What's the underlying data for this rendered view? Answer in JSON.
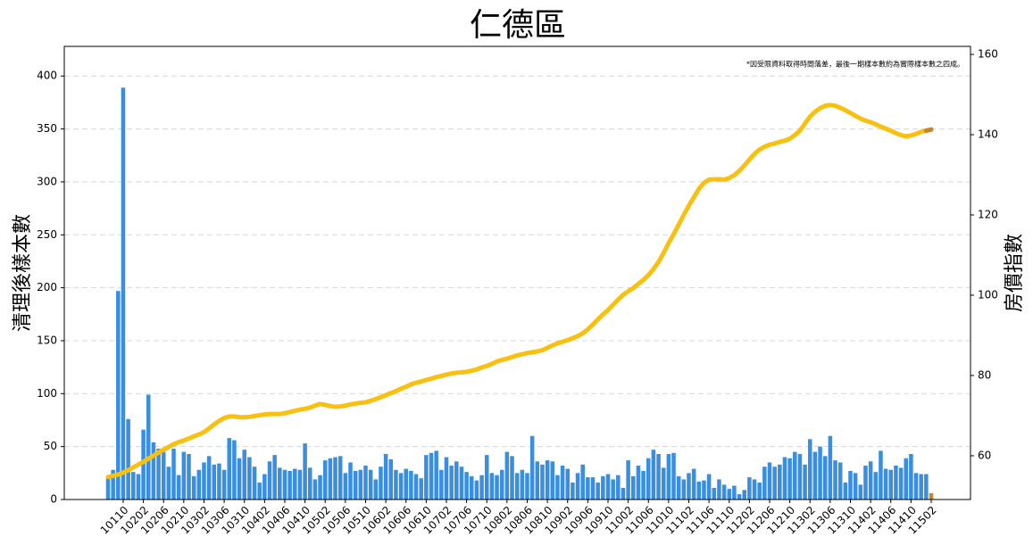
{
  "chart_data": {
    "type": "bar-line",
    "title": "仁德區",
    "ylabel": "清理後樣本數",
    "y2label": "房價指數",
    "annotation": "*因受限資料取得時間落差，最後一期樣本數約為實際樣本數之四成。",
    "categories": [
      null,
      null,
      null,
      "10110",
      null,
      null,
      null,
      "10202",
      null,
      null,
      null,
      "10206",
      null,
      null,
      null,
      "10210",
      null,
      null,
      null,
      "10302",
      null,
      null,
      null,
      "10306",
      null,
      null,
      null,
      "10310",
      null,
      null,
      null,
      "10402",
      null,
      null,
      null,
      "10406",
      null,
      null,
      null,
      "10410",
      null,
      null,
      null,
      "10502",
      null,
      null,
      null,
      "10506",
      null,
      null,
      null,
      "10510",
      null,
      null,
      null,
      "10602",
      null,
      null,
      null,
      "10606",
      null,
      null,
      null,
      "10610",
      null,
      null,
      null,
      "10702",
      null,
      null,
      null,
      "10706",
      null,
      null,
      null,
      "10710",
      null,
      null,
      null,
      "10802",
      null,
      null,
      null,
      "10806",
      null,
      null,
      null,
      "10810",
      null,
      null,
      null,
      "10902",
      null,
      null,
      null,
      "10906",
      null,
      null,
      null,
      "10910",
      null,
      null,
      null,
      "11002",
      null,
      null,
      null,
      "11006",
      null,
      null,
      null,
      "11010",
      null,
      null,
      null,
      "11102",
      null,
      null,
      null,
      "11106",
      null,
      null,
      null,
      "11110",
      null,
      null,
      null,
      "11202",
      null,
      null,
      null,
      "11206",
      null,
      null,
      null,
      "11210",
      null,
      null,
      null,
      "11302",
      null,
      null,
      null,
      "11306",
      null,
      null,
      null,
      "11310",
      null,
      null,
      null,
      "11402",
      null,
      null,
      null,
      "11406",
      null,
      null,
      null,
      "11410",
      null,
      null,
      null,
      "11502"
    ],
    "series": [
      {
        "type": "bar",
        "axis": "y",
        "color": "#3a8ee0",
        "values": [
          21,
          28,
          197,
          389,
          76,
          26,
          24,
          66,
          99,
          54,
          48,
          45,
          31,
          48,
          23,
          45,
          43,
          22,
          28,
          35,
          41,
          33,
          34,
          28,
          58,
          56,
          39,
          47,
          40,
          31,
          16,
          24,
          36,
          42,
          30,
          28,
          27,
          29,
          28,
          53,
          30,
          19,
          23,
          37,
          39,
          40,
          41,
          25,
          35,
          27,
          28,
          32,
          28,
          19,
          31,
          43,
          38,
          28,
          25,
          29,
          27,
          24,
          20,
          42,
          44,
          46,
          28,
          40,
          32,
          36,
          31,
          26,
          22,
          18,
          23,
          42,
          25,
          23,
          28,
          45,
          41,
          25,
          28,
          25,
          60,
          36,
          33,
          37,
          36,
          23,
          32,
          29,
          16,
          25,
          33,
          21,
          21,
          16,
          22,
          24,
          19,
          23,
          11,
          37,
          22,
          32,
          27,
          39,
          47,
          43,
          30,
          43,
          44,
          22,
          19,
          25,
          29,
          17,
          18,
          24,
          11,
          19,
          14,
          10,
          13,
          5,
          9,
          21,
          19,
          16,
          31,
          35,
          31,
          33,
          40,
          39,
          45,
          43,
          33,
          57,
          45,
          50,
          41,
          60,
          37,
          35,
          16,
          27,
          25,
          14,
          32,
          36,
          26,
          46,
          29,
          28,
          32,
          30,
          39,
          43,
          25,
          24,
          24,
          6
        ]
      },
      {
        "type": "line",
        "axis": "y2",
        "color": "#f8c010",
        "values": [
          54.7,
          55.0,
          55.3,
          55.8,
          56.4,
          57.1,
          57.8,
          58.5,
          59.3,
          60.0,
          60.8,
          61.5,
          62.2,
          62.9,
          63.4,
          63.8,
          64.3,
          64.8,
          65.3,
          65.9,
          66.8,
          67.8,
          68.7,
          69.4,
          69.8,
          69.8,
          69.6,
          69.6,
          69.7,
          69.9,
          70.1,
          70.3,
          70.4,
          70.4,
          70.4,
          70.6,
          70.9,
          71.2,
          71.5,
          71.7,
          72.0,
          72.5,
          72.9,
          72.7,
          72.4,
          72.2,
          72.3,
          72.5,
          72.8,
          73.0,
          73.2,
          73.3,
          73.7,
          74.1,
          74.6,
          75.1,
          75.6,
          76.1,
          76.7,
          77.2,
          77.8,
          78.2,
          78.5,
          78.9,
          79.2,
          79.6,
          79.9,
          80.2,
          80.5,
          80.7,
          80.8,
          80.9,
          81.2,
          81.5,
          82.0,
          82.4,
          82.9,
          83.5,
          83.9,
          84.2,
          84.6,
          85.0,
          85.3,
          85.6,
          85.8,
          86.0,
          86.3,
          86.9,
          87.5,
          88.0,
          88.4,
          88.8,
          89.3,
          89.8,
          90.5,
          91.5,
          92.7,
          94.0,
          95.2,
          96.3,
          97.6,
          98.9,
          100.1,
          101.0,
          101.8,
          102.8,
          103.8,
          105.0,
          106.5,
          108.3,
          110.5,
          113.0,
          115.2,
          117.6,
          120.0,
          122.3,
          124.4,
          126.5,
          128.0,
          128.8,
          128.9,
          128.9,
          128.8,
          129.2,
          129.9,
          131.0,
          132.3,
          133.8,
          135.2,
          136.3,
          137.0,
          137.5,
          137.8,
          138.2,
          138.5,
          139.0,
          139.9,
          141.0,
          142.8,
          144.5,
          145.7,
          146.6,
          147.2,
          147.4,
          147.2,
          146.7,
          146.1,
          145.4,
          144.7,
          144.0,
          143.5,
          143.1,
          142.6,
          142.0,
          141.5,
          141.0,
          140.4,
          139.9,
          139.6,
          139.8,
          140.2,
          140.7,
          141.0,
          141.3
        ]
      }
    ],
    "last_period_color": "#c8862a",
    "ylim": [
      0,
      428
    ],
    "yticks": [
      0,
      50,
      100,
      150,
      200,
      250,
      300,
      350,
      400
    ],
    "y2lim": [
      49.1,
      162
    ],
    "y2ticks": [
      60,
      80,
      100,
      120,
      140,
      160
    ],
    "grid": true
  }
}
